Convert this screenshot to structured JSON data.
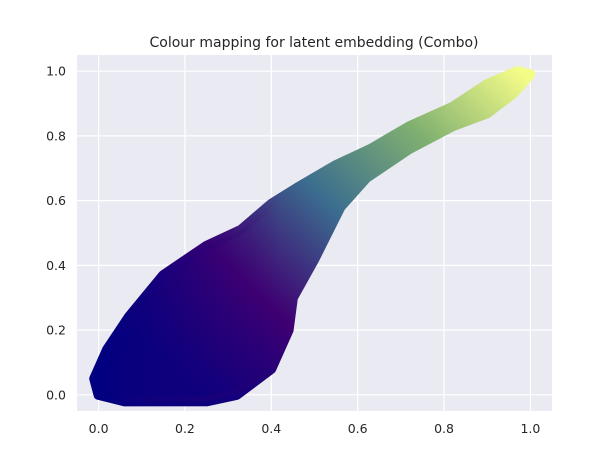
{
  "chart_data": {
    "type": "scatter",
    "title": "Colour mapping for latent embedding (Combo)",
    "xlabel": "",
    "ylabel": "",
    "xlim": [
      -0.05,
      1.05
    ],
    "ylim": [
      -0.05,
      1.05
    ],
    "xticks": [
      0.0,
      0.2,
      0.4,
      0.6,
      0.8,
      1.0
    ],
    "yticks": [
      0.0,
      0.2,
      0.4,
      0.6,
      0.8,
      1.0
    ],
    "xtick_labels": [
      "0.0",
      "0.2",
      "0.4",
      "0.6",
      "0.8",
      "1.0"
    ],
    "ytick_labels": [
      "0.0",
      "0.2",
      "0.4",
      "0.6",
      "0.8",
      "1.0"
    ],
    "grid": true,
    "background": "#eaeaf2",
    "colormap": [
      "#000080",
      "#3f0072",
      "#3b6d8f",
      "#80b070",
      "#f4fc88"
    ],
    "region_outline": [
      [
        0.0,
        0.0
      ],
      [
        0.06,
        -0.02
      ],
      [
        0.15,
        -0.02
      ],
      [
        0.25,
        -0.02
      ],
      [
        0.32,
        0.0
      ],
      [
        0.4,
        0.08
      ],
      [
        0.44,
        0.2
      ],
      [
        0.45,
        0.3
      ],
      [
        0.5,
        0.42
      ],
      [
        0.56,
        0.58
      ],
      [
        0.62,
        0.67
      ],
      [
        0.72,
        0.76
      ],
      [
        0.82,
        0.83
      ],
      [
        0.9,
        0.87
      ],
      [
        0.96,
        0.93
      ],
      [
        1.0,
        0.99
      ],
      [
        0.97,
        1.0
      ],
      [
        0.9,
        0.96
      ],
      [
        0.82,
        0.89
      ],
      [
        0.72,
        0.83
      ],
      [
        0.63,
        0.76
      ],
      [
        0.55,
        0.71
      ],
      [
        0.46,
        0.64
      ],
      [
        0.4,
        0.59
      ],
      [
        0.33,
        0.51
      ],
      [
        0.25,
        0.46
      ],
      [
        0.15,
        0.37
      ],
      [
        0.07,
        0.24
      ],
      [
        0.02,
        0.14
      ],
      [
        -0.01,
        0.05
      ]
    ]
  }
}
